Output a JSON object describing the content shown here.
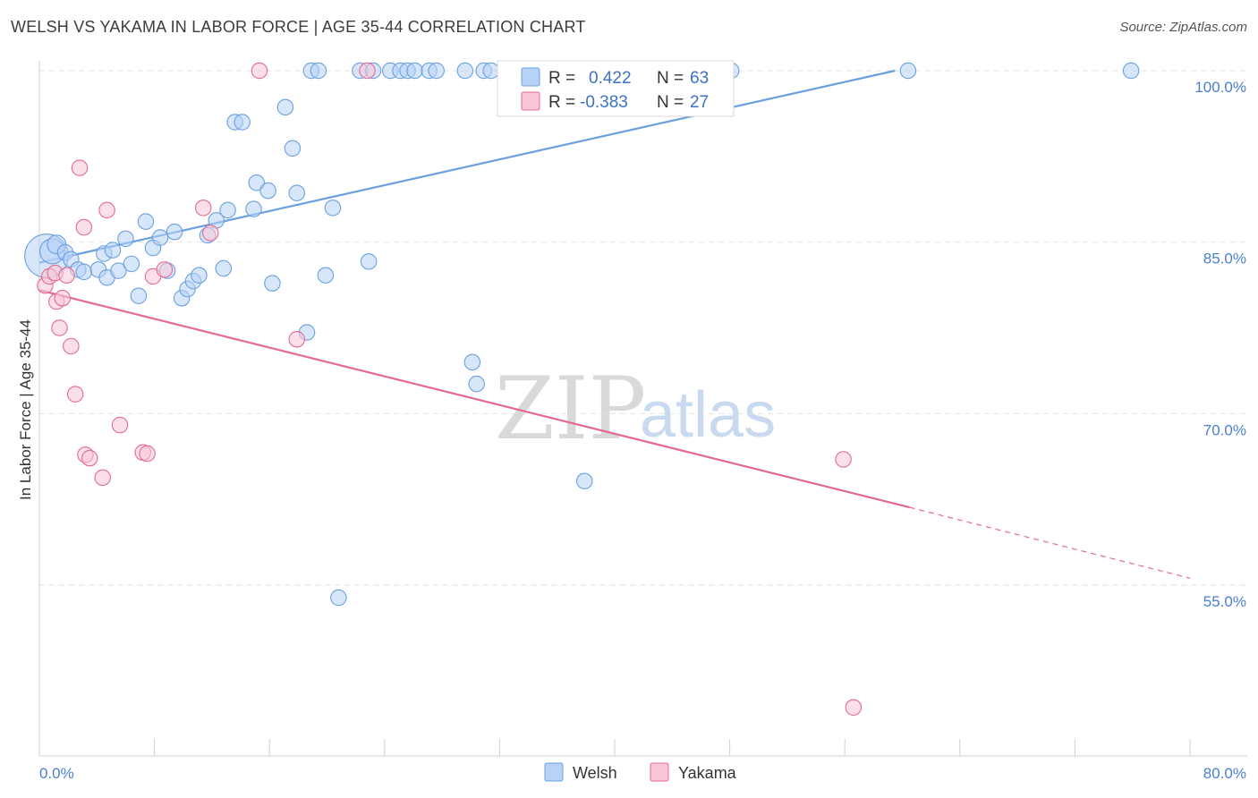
{
  "chart_data": {
    "type": "scatter",
    "title": "WELSH VS YAKAMA IN LABOR FORCE | AGE 35-44 CORRELATION CHART",
    "source": "Source: ZipAtlas.com",
    "ylabel": "In Labor Force | Age 35-44",
    "xlabel": "",
    "xlim": [
      0,
      80
    ],
    "ylim": [
      40,
      101
    ],
    "x_tick_labels": [
      "0.0%",
      "80.0%"
    ],
    "y_tick_values": [
      100,
      85,
      70,
      55
    ],
    "y_tick_labels": [
      "100.0%",
      "85.0%",
      "70.0%",
      "55.0%"
    ],
    "watermark": [
      "ZIP",
      "atlas"
    ],
    "legend_box": [
      {
        "r_label": "R =",
        "r_value": "0.422",
        "n_label": "N =",
        "n_value": "63"
      },
      {
        "r_label": "R =",
        "r_value": "-0.383",
        "n_label": "N =",
        "n_value": "27"
      }
    ],
    "series": [
      {
        "name": "Welsh",
        "color": "#6aa0e0",
        "fill": "#b8d2f5",
        "trend": {
          "x0": 0,
          "y0": 83.2,
          "x1": 59.5,
          "y1": 100,
          "dashed_to": null
        },
        "points": [
          [
            0.5,
            83.8,
            28
          ],
          [
            0.9,
            84.2,
            16
          ],
          [
            1.2,
            84.8,
            12
          ],
          [
            1.8,
            84.1,
            10
          ],
          [
            2.2,
            83.5,
            10
          ],
          [
            2.7,
            82.6,
            10
          ],
          [
            3.1,
            82.4,
            10
          ],
          [
            4.1,
            82.6,
            10
          ],
          [
            4.5,
            84.0,
            10
          ],
          [
            4.7,
            81.9,
            10
          ],
          [
            5.1,
            84.3,
            10
          ],
          [
            5.5,
            82.5,
            10
          ],
          [
            6.0,
            85.3,
            10
          ],
          [
            6.4,
            83.1,
            10
          ],
          [
            6.9,
            80.3,
            10
          ],
          [
            7.4,
            86.8,
            10
          ],
          [
            7.9,
            84.5,
            10
          ],
          [
            8.4,
            85.4,
            10
          ],
          [
            8.9,
            82.5,
            10
          ],
          [
            9.4,
            85.9,
            10
          ],
          [
            9.9,
            80.1,
            10
          ],
          [
            10.3,
            80.9,
            10
          ],
          [
            10.7,
            81.6,
            10
          ],
          [
            11.1,
            82.1,
            10
          ],
          [
            11.7,
            85.6,
            10
          ],
          [
            12.3,
            86.9,
            10
          ],
          [
            12.8,
            82.7,
            10
          ],
          [
            13.1,
            87.8,
            10
          ],
          [
            13.6,
            95.5,
            10
          ],
          [
            14.1,
            95.5,
            10
          ],
          [
            14.9,
            87.9,
            10
          ],
          [
            15.1,
            90.2,
            10
          ],
          [
            15.9,
            89.5,
            10
          ],
          [
            16.2,
            81.4,
            10
          ],
          [
            17.1,
            96.8,
            10
          ],
          [
            17.6,
            93.2,
            10
          ],
          [
            17.9,
            89.3,
            10
          ],
          [
            18.6,
            77.1,
            10
          ],
          [
            18.9,
            100,
            10
          ],
          [
            19.4,
            100,
            10
          ],
          [
            19.9,
            82.1,
            10
          ],
          [
            20.4,
            88.0,
            10
          ],
          [
            20.8,
            53.9,
            10
          ],
          [
            22.3,
            100,
            10
          ],
          [
            22.9,
            83.3,
            10
          ],
          [
            23.2,
            100,
            10
          ],
          [
            24.4,
            100,
            10
          ],
          [
            25.1,
            100,
            10
          ],
          [
            25.6,
            100,
            10
          ],
          [
            26.1,
            100,
            10
          ],
          [
            27.1,
            100,
            10
          ],
          [
            27.6,
            100,
            10
          ],
          [
            29.6,
            100,
            10
          ],
          [
            30.1,
            74.5,
            10
          ],
          [
            30.4,
            72.6,
            10
          ],
          [
            30.9,
            100,
            10
          ],
          [
            31.4,
            100,
            10
          ],
          [
            35.1,
            100,
            10
          ],
          [
            37.9,
            64.1,
            10
          ],
          [
            47.4,
            100,
            10
          ],
          [
            48.1,
            100,
            10
          ],
          [
            60.4,
            100,
            10
          ],
          [
            75.9,
            100,
            10
          ]
        ]
      },
      {
        "name": "Yakama",
        "color": "#e36a93",
        "fill": "#f8c6d6",
        "trend": {
          "x0": 0,
          "y0": 80.8,
          "x1": 60.5,
          "y1": 61.8,
          "dashed_to": {
            "x": 80,
            "y": 55.6
          }
        },
        "points": [
          [
            0.4,
            81.2,
            10
          ],
          [
            0.7,
            82.0,
            10
          ],
          [
            1.1,
            82.3,
            10
          ],
          [
            1.2,
            79.8,
            10
          ],
          [
            1.4,
            77.5,
            10
          ],
          [
            1.6,
            80.1,
            10
          ],
          [
            1.9,
            82.1,
            10
          ],
          [
            2.2,
            75.9,
            10
          ],
          [
            2.5,
            71.7,
            10
          ],
          [
            2.8,
            91.5,
            10
          ],
          [
            3.1,
            86.3,
            10
          ],
          [
            3.2,
            66.4,
            10
          ],
          [
            3.5,
            66.1,
            10
          ],
          [
            4.4,
            64.4,
            10
          ],
          [
            4.7,
            87.8,
            10
          ],
          [
            5.6,
            69.0,
            10
          ],
          [
            7.2,
            66.6,
            10
          ],
          [
            7.5,
            66.5,
            10
          ],
          [
            7.9,
            82.0,
            10
          ],
          [
            8.7,
            82.6,
            10
          ],
          [
            11.4,
            88.0,
            10
          ],
          [
            11.9,
            85.8,
            10
          ],
          [
            15.3,
            100,
            10
          ],
          [
            17.9,
            76.5,
            10
          ],
          [
            22.8,
            100,
            10
          ],
          [
            55.9,
            66.0,
            10
          ],
          [
            56.6,
            44.3,
            10
          ]
        ]
      }
    ]
  }
}
